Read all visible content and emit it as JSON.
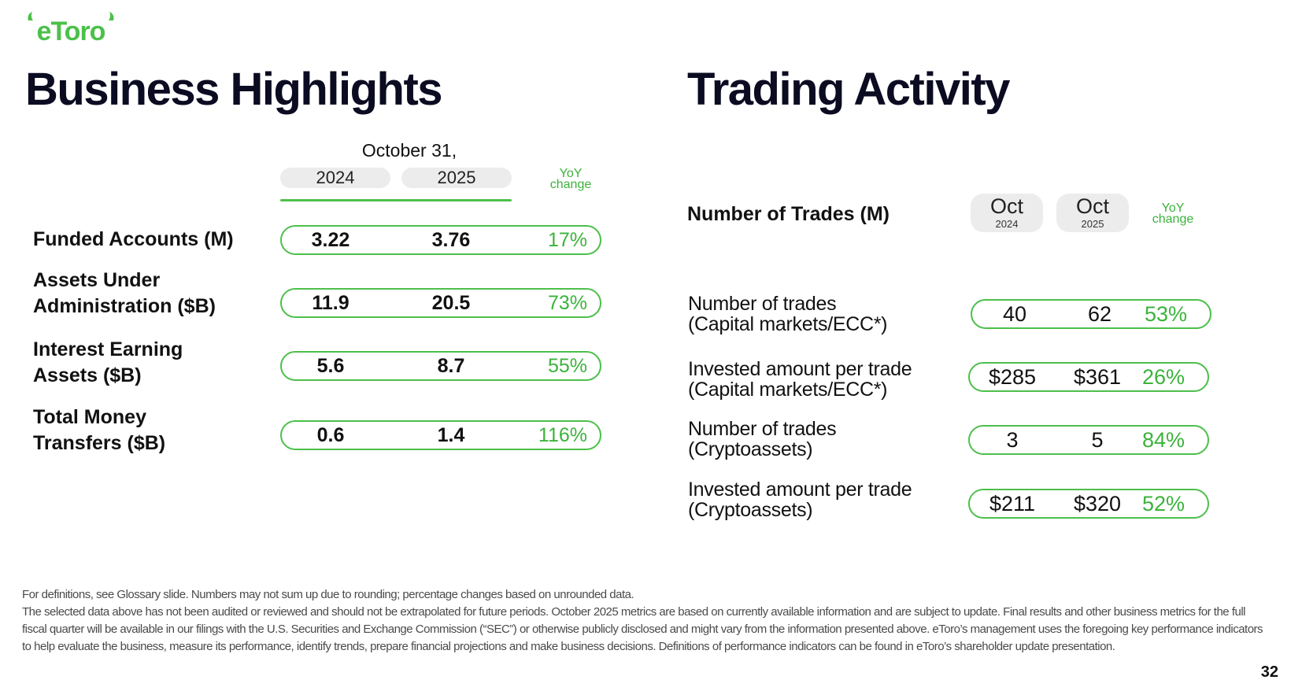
{
  "brand": {
    "logo_text": "eToro",
    "accent": "#4cc04a",
    "text_dark": "#0b0b22"
  },
  "business": {
    "title": "Business Highlights",
    "period": "October 31,",
    "years": [
      "2024",
      "2025"
    ],
    "yoy": [
      "YoY",
      "change"
    ],
    "rows": [
      {
        "label_1": "Funded Accounts (M)",
        "label_2": "",
        "v2024": "3.22",
        "v2025": "3.76",
        "yoy": "17%"
      },
      {
        "label_1": "Assets Under",
        "label_2": "Administration ($B)",
        "v2024": "11.9",
        "v2025": "20.5",
        "yoy": "73%"
      },
      {
        "label_1": "Interest Earning",
        "label_2": "Assets ($B)",
        "v2024": "5.6",
        "v2025": "8.7",
        "yoy": "55%"
      },
      {
        "label_1": "Total Money",
        "label_2": "Transfers ($B)",
        "v2024": "0.6",
        "v2025": "1.4",
        "yoy": "116%"
      }
    ]
  },
  "trading": {
    "title": "Trading Activity",
    "header_label": "Number of Trades (M)",
    "columns": [
      {
        "month": "Oct",
        "year": "2024"
      },
      {
        "month": "Oct",
        "year": "2025"
      }
    ],
    "yoy": [
      "YoY",
      "change"
    ],
    "rows": [
      {
        "label_1": "Number of trades",
        "label_2": "(Capital markets/ECC*)",
        "v2024": "40",
        "v2025": "62",
        "yoy": "53%"
      },
      {
        "label_1": "Invested amount per trade",
        "label_2": "(Capital markets/ECC*)",
        "v2024": "$285",
        "v2025": "$361",
        "yoy": "26%"
      },
      {
        "label_1": "Number of trades",
        "label_2": "(Cryptoassets)",
        "v2024": "3",
        "v2025": "5",
        "yoy": "84%"
      },
      {
        "label_1": "Invested amount per trade",
        "label_2": "(Cryptoassets)",
        "v2024": "$211",
        "v2025": "$320",
        "yoy": "52%"
      }
    ]
  },
  "footnote": {
    "line_1": "For definitions,  see  Glossary slide. Numbers may not sum up due to rounding; percentage changes based on unrounded data.",
    "line_2": "The selected data above has not been audited or reviewed and should not be extrapolated for future periods. October 2025 metrics are based on currently available information and are subject to update. Final results and other business metrics for the full fiscal quarter will be available in our filings with the U.S. Securities and Exchange Commission (“SEC”) or otherwise publicly disclosed and might vary from the information presented above. eToro’s management uses the foregoing key performance indicators to help evaluate the business, measure its performance, identify trends, prepare financial projections and make business decisions. Definitions of performance indicators can be found in eToro’s shareholder update presentation."
  },
  "page_number": "32"
}
